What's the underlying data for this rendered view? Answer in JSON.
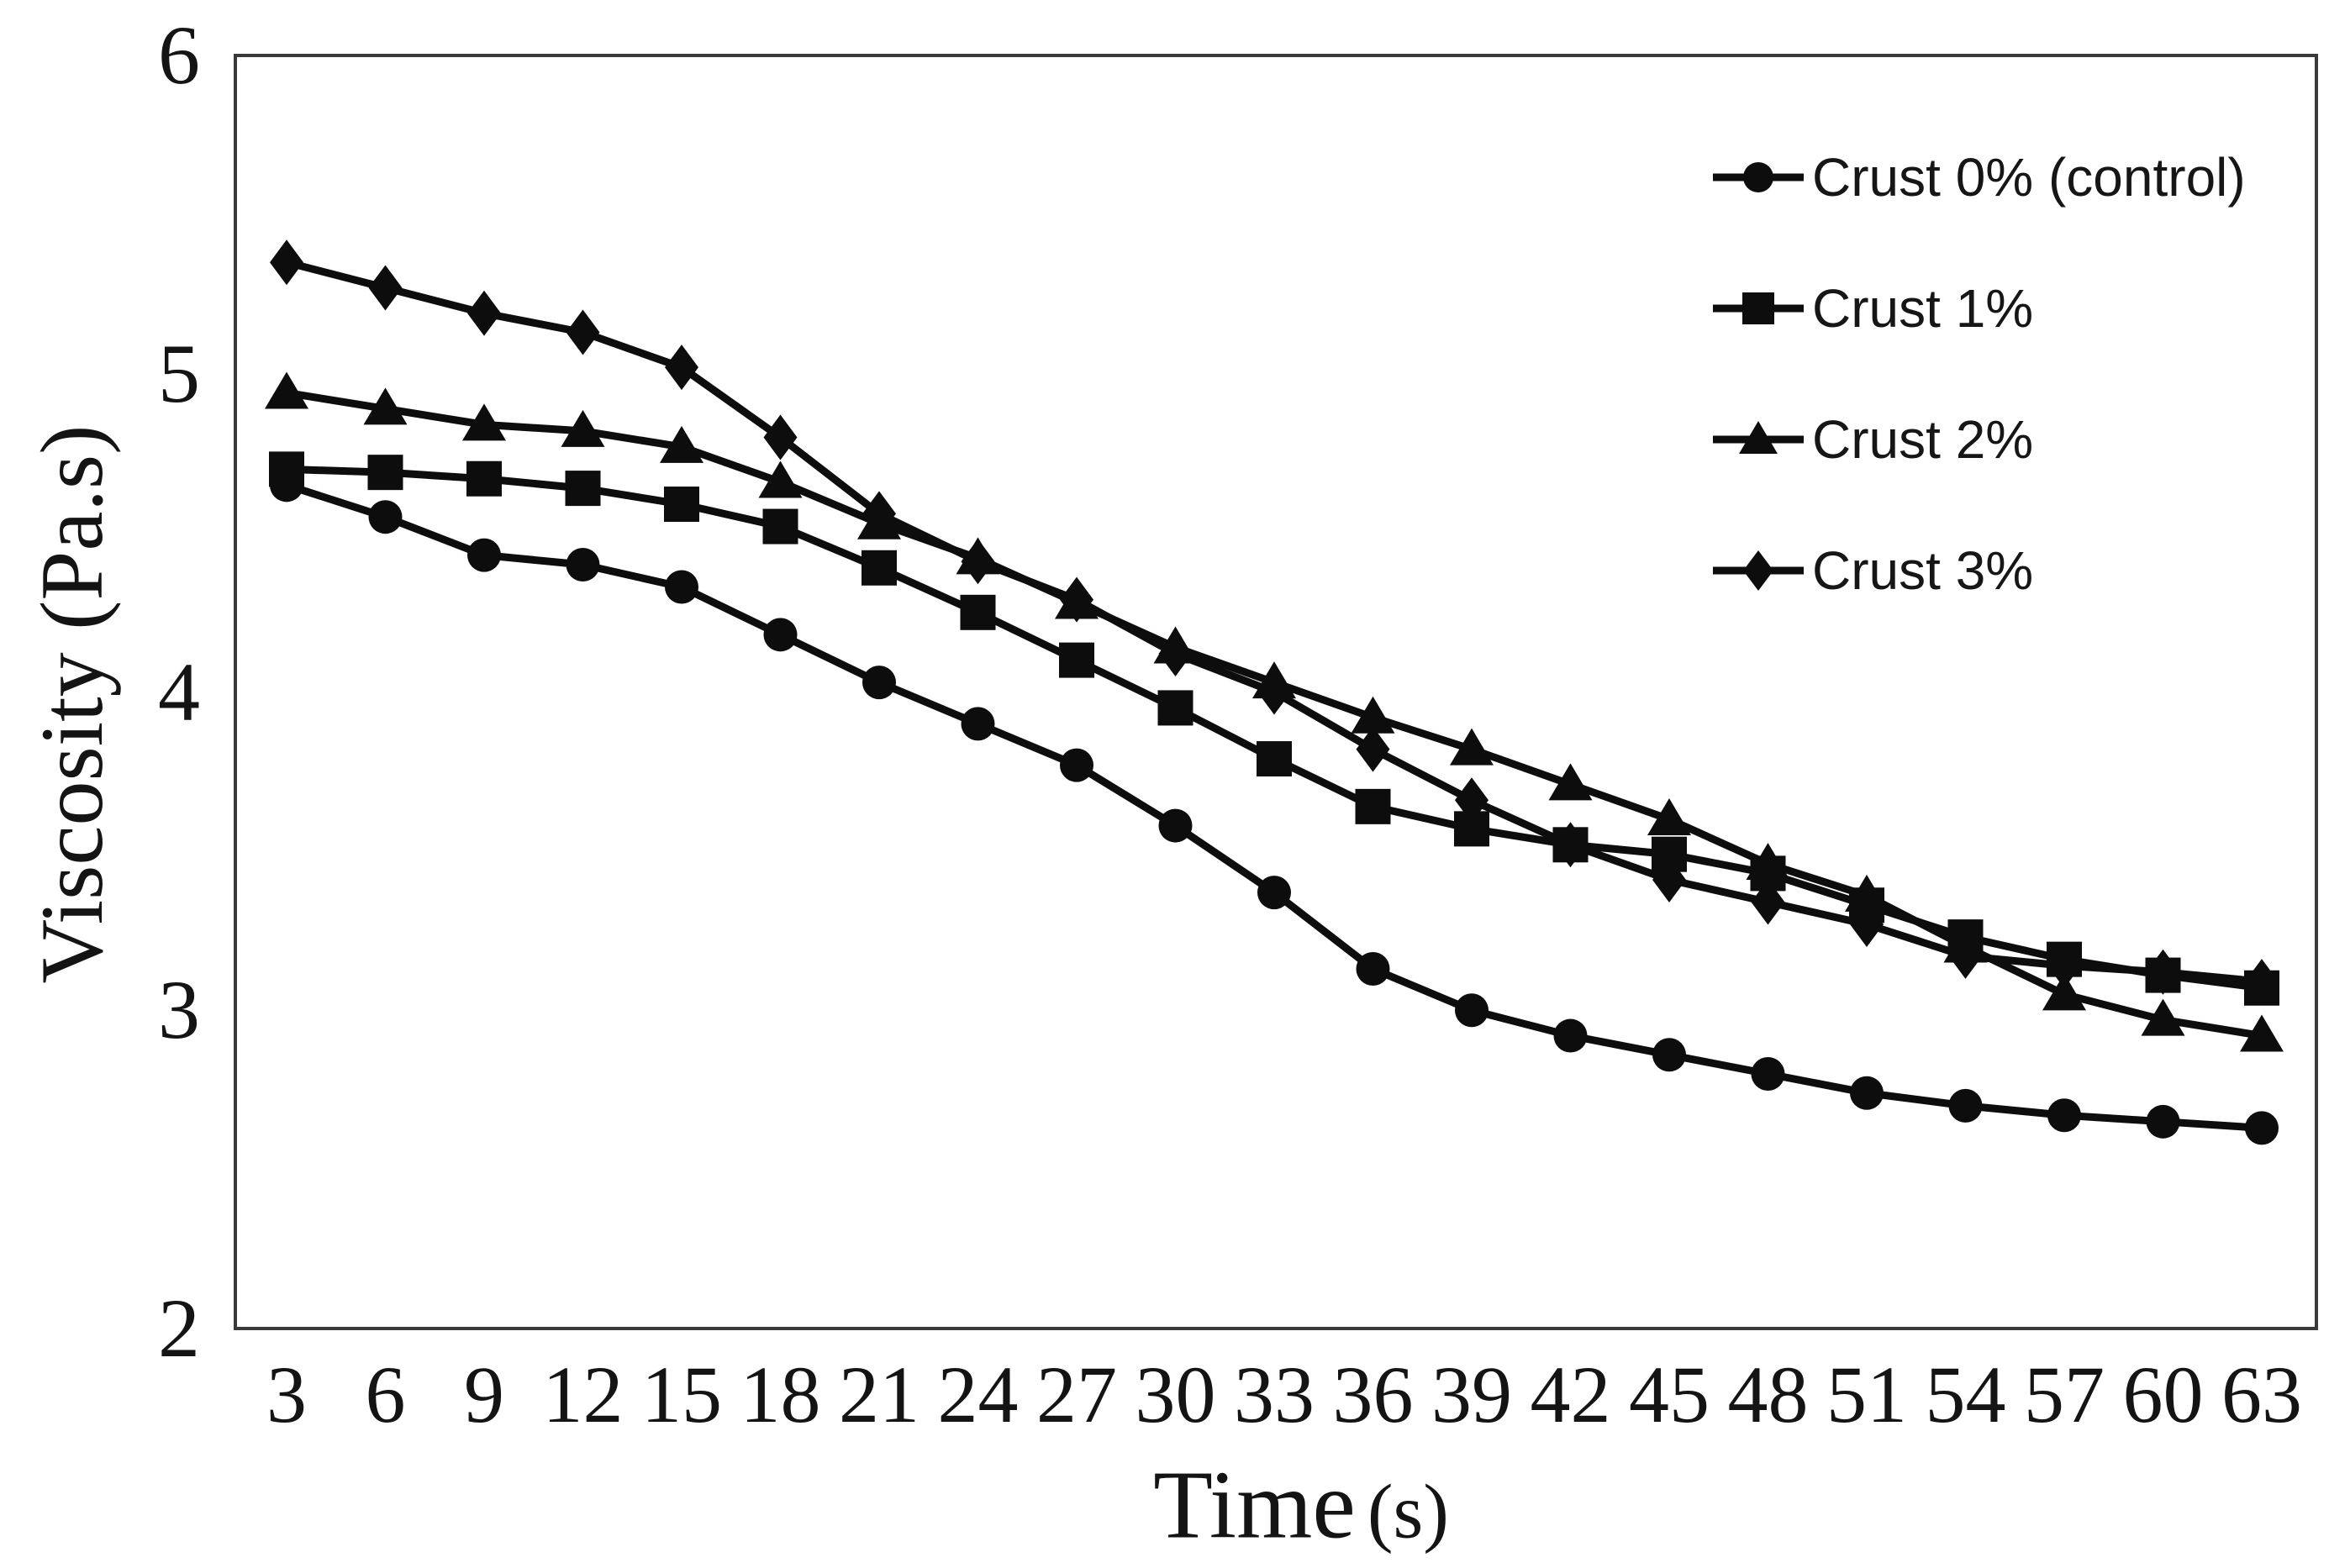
{
  "figure": {
    "background": "#ffffff",
    "ink_color": "#0d0d0d",
    "border_color": "#3a3a3a"
  },
  "chart_data": {
    "type": "line",
    "title": "",
    "xlabel": "Time",
    "xlabel_unit": "(s)",
    "ylabel": "Viscosity (Pa.s)",
    "x": [
      3,
      6,
      9,
      12,
      15,
      18,
      21,
      24,
      27,
      30,
      33,
      36,
      39,
      42,
      45,
      48,
      51,
      54,
      57,
      60,
      63
    ],
    "ylim": [
      2,
      6
    ],
    "y_ticks": [
      2,
      3,
      4,
      5,
      6
    ],
    "grid": false,
    "legend_position": "upper-right-inside",
    "series": [
      {
        "name": "Crust 0% (control)",
        "marker": "circle",
        "values": [
          4.65,
          4.55,
          4.43,
          4.4,
          4.33,
          4.18,
          4.03,
          3.9,
          3.77,
          3.58,
          3.37,
          3.13,
          3.0,
          2.92,
          2.86,
          2.8,
          2.74,
          2.7,
          2.67,
          2.65,
          2.63
        ]
      },
      {
        "name": "Crust 1%",
        "marker": "square",
        "values": [
          4.7,
          4.69,
          4.67,
          4.64,
          4.59,
          4.52,
          4.39,
          4.25,
          4.1,
          3.95,
          3.79,
          3.64,
          3.57,
          3.52,
          3.49,
          3.43,
          3.33,
          3.23,
          3.16,
          3.11,
          3.07
        ]
      },
      {
        "name": "Crust 2%",
        "marker": "triangle",
        "values": [
          4.94,
          4.89,
          4.84,
          4.82,
          4.77,
          4.66,
          4.53,
          4.42,
          4.28,
          4.14,
          4.03,
          3.92,
          3.82,
          3.71,
          3.6,
          3.46,
          3.36,
          3.2,
          3.05,
          2.97,
          2.92
        ]
      },
      {
        "name": "Crust 3%",
        "marker": "diamond",
        "values": [
          5.35,
          5.27,
          5.19,
          5.13,
          5.02,
          4.8,
          4.56,
          4.41,
          4.29,
          4.12,
          4.0,
          3.82,
          3.66,
          3.52,
          3.41,
          3.34,
          3.27,
          3.17,
          3.14,
          3.12,
          3.09
        ]
      }
    ]
  }
}
